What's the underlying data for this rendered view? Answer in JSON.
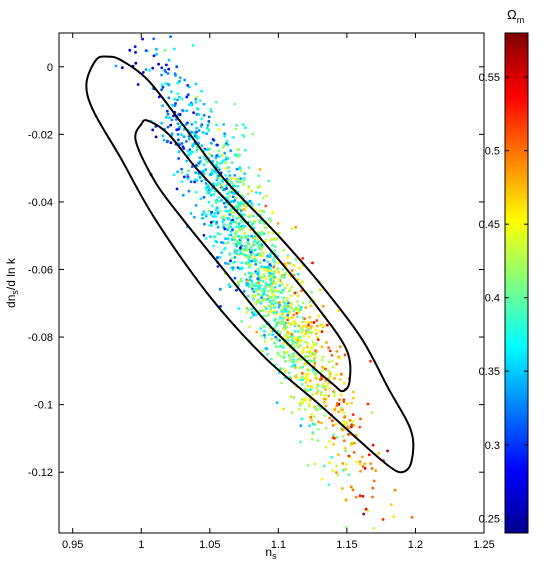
{
  "chart_data": {
    "type": "scatter",
    "title": "",
    "xlabel": "n",
    "xlabel_sub": "s",
    "ylabel_parts": [
      "dn",
      "s",
      "/d ln k"
    ],
    "xlim": [
      0.94,
      1.25
    ],
    "ylim": [
      -0.138,
      0.01
    ],
    "x_ticks": [
      0.95,
      1,
      1.05,
      1.1,
      1.15,
      1.2,
      1.25
    ],
    "x_tick_labels": [
      "0.95",
      "1",
      "1.05",
      "1.1",
      "1.15",
      "1.2",
      "1.25"
    ],
    "y_ticks": [
      0,
      -0.02,
      -0.04,
      -0.06,
      -0.08,
      -0.1,
      -0.12
    ],
    "y_tick_labels": [
      "0",
      "-0.02",
      "-0.04",
      "-0.06",
      "-0.08",
      "-0.1",
      "-0.12"
    ],
    "grid": false,
    "colorbar": {
      "label_main": "Ω",
      "label_sub": "m",
      "range": [
        0.24,
        0.58
      ],
      "ticks": [
        0.25,
        0.3,
        0.35,
        0.4,
        0.45,
        0.5,
        0.55
      ],
      "tick_labels": [
        "0.25",
        "0.3",
        "0.35",
        "0.4",
        "0.45",
        "0.5",
        "0.55"
      ],
      "colormap": "jet"
    },
    "scatter_distribution": {
      "n_points": 1700,
      "center": [
        1.085,
        -0.058
      ],
      "correlation": "negative",
      "color_trend": "Omega_m increases with n_s (blue upper-left to red lower-right)"
    },
    "contours": [
      {
        "level": "inner",
        "points": [
          [
            1.0,
            -0.017
          ],
          [
            0.996,
            -0.022
          ],
          [
            1.01,
            -0.034
          ],
          [
            1.03,
            -0.045
          ],
          [
            1.06,
            -0.06
          ],
          [
            1.09,
            -0.075
          ],
          [
            1.12,
            -0.087
          ],
          [
            1.14,
            -0.094
          ],
          [
            1.147,
            -0.096
          ],
          [
            1.152,
            -0.093
          ],
          [
            1.15,
            -0.084
          ],
          [
            1.13,
            -0.072
          ],
          [
            1.1,
            -0.057
          ],
          [
            1.07,
            -0.043
          ],
          [
            1.04,
            -0.03
          ],
          [
            1.02,
            -0.02
          ],
          [
            1.005,
            -0.016
          ]
        ]
      },
      {
        "level": "outer",
        "points": [
          [
            0.967,
            0.002
          ],
          [
            0.96,
            -0.005
          ],
          [
            0.965,
            -0.013
          ],
          [
            0.985,
            -0.027
          ],
          [
            1.01,
            -0.045
          ],
          [
            1.05,
            -0.068
          ],
          [
            1.09,
            -0.086
          ],
          [
            1.13,
            -0.1
          ],
          [
            1.16,
            -0.111
          ],
          [
            1.18,
            -0.118
          ],
          [
            1.19,
            -0.12
          ],
          [
            1.197,
            -0.117
          ],
          [
            1.197,
            -0.108
          ],
          [
            1.18,
            -0.095
          ],
          [
            1.16,
            -0.08
          ],
          [
            1.13,
            -0.064
          ],
          [
            1.1,
            -0.05
          ],
          [
            1.06,
            -0.033
          ],
          [
            1.03,
            -0.017
          ],
          [
            1.005,
            -0.004
          ],
          [
            0.985,
            0.002
          ],
          [
            0.975,
            0.003
          ]
        ]
      }
    ]
  }
}
